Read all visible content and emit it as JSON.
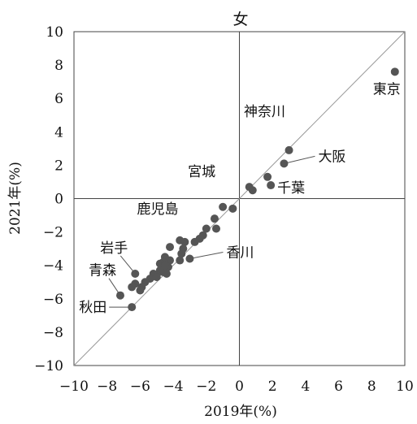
{
  "chart_data": {
    "type": "scatter",
    "title": "女",
    "xlabel": "2019年(%)",
    "ylabel": "2021年(%)",
    "xlim": [
      -10,
      10
    ],
    "ylim": [
      -10,
      10
    ],
    "xticks": [
      "−10",
      "−8",
      "−6",
      "−4",
      "−2",
      "0",
      "2",
      "4",
      "6",
      "8",
      "10"
    ],
    "yticks": [
      "−10",
      "−8",
      "−6",
      "−4",
      "−2",
      "0",
      "2",
      "4",
      "6",
      "8",
      "10"
    ],
    "reference_line": "y = x",
    "grid": false,
    "labeled_points": [
      {
        "name": "東京",
        "x": 9.4,
        "y": 7.6
      },
      {
        "name": "神奈川",
        "x": 3.0,
        "y": 2.9
      },
      {
        "name": "大阪",
        "x": 2.7,
        "y": 2.1
      },
      {
        "name": "千葉",
        "x": 1.9,
        "y": 0.8
      },
      {
        "name": "宮城",
        "x": -1.0,
        "y": -0.5
      },
      {
        "name": "鹿児島",
        "x": -4.2,
        "y": -2.9
      },
      {
        "name": "香川",
        "x": -3.0,
        "y": -3.6
      },
      {
        "name": "岩手",
        "x": -6.3,
        "y": -4.5
      },
      {
        "name": "青森",
        "x": -7.2,
        "y": -5.8
      },
      {
        "name": "秋田",
        "x": -6.5,
        "y": -6.5
      }
    ],
    "points": [
      {
        "x": 0.6,
        "y": 0.7
      },
      {
        "x": 0.8,
        "y": 0.5
      },
      {
        "x": 1.7,
        "y": 1.3
      },
      {
        "x": -0.4,
        "y": -0.6
      },
      {
        "x": -1.5,
        "y": -1.2
      },
      {
        "x": -1.4,
        "y": -1.8
      },
      {
        "x": -2.0,
        "y": -1.8
      },
      {
        "x": -2.2,
        "y": -2.2
      },
      {
        "x": -2.4,
        "y": -2.4
      },
      {
        "x": -2.7,
        "y": -2.6
      },
      {
        "x": -3.3,
        "y": -2.6
      },
      {
        "x": -3.4,
        "y": -3.0
      },
      {
        "x": -3.5,
        "y": -3.3
      },
      {
        "x": -3.6,
        "y": -2.5
      },
      {
        "x": -3.6,
        "y": -3.7
      },
      {
        "x": -4.2,
        "y": -3.7
      },
      {
        "x": -4.3,
        "y": -4.1
      },
      {
        "x": -4.5,
        "y": -3.5
      },
      {
        "x": -4.6,
        "y": -3.8
      },
      {
        "x": -4.4,
        "y": -4.5
      },
      {
        "x": -4.6,
        "y": -4.4
      },
      {
        "x": -4.8,
        "y": -3.9
      },
      {
        "x": -4.8,
        "y": -4.3
      },
      {
        "x": -5.0,
        "y": -4.6
      },
      {
        "x": -5.2,
        "y": -4.5
      },
      {
        "x": -5.4,
        "y": -4.8
      },
      {
        "x": -5.0,
        "y": -4.7
      },
      {
        "x": -5.7,
        "y": -5.0
      },
      {
        "x": -5.9,
        "y": -5.3
      },
      {
        "x": -6.0,
        "y": -5.5
      },
      {
        "x": -6.3,
        "y": -5.1
      },
      {
        "x": -6.5,
        "y": -5.3
      },
      {
        "x": -4.5,
        "y": -4.0
      }
    ]
  }
}
